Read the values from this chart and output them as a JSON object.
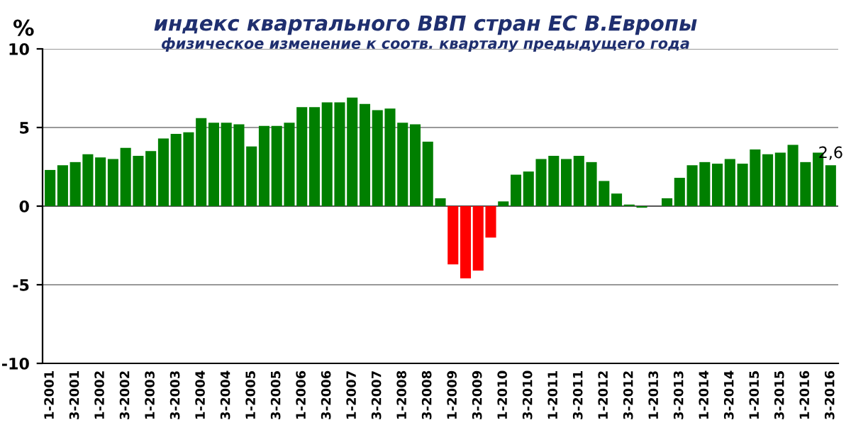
{
  "chart_data": {
    "type": "bar",
    "title": "индекс квартального ВВП стран ЕС В.Европы",
    "subtitle": "физическое изменение к соотв. кварталу предыдущего года",
    "ylabel": "%",
    "categories": [
      "1-2001",
      null,
      "3-2001",
      null,
      "1-2002",
      null,
      "3-2002",
      null,
      "1-2003",
      null,
      "3-2003",
      null,
      "1-2004",
      null,
      "3-2004",
      null,
      "1-2005",
      null,
      "3-2005",
      null,
      "1-2006",
      null,
      "3-2006",
      null,
      "1-2007",
      null,
      "3-2007",
      null,
      "1-2008",
      null,
      "3-2008",
      null,
      "1-2009",
      null,
      "3-2009",
      null,
      "1-2010",
      null,
      "3-2010",
      null,
      "1-2011",
      null,
      "3-2011",
      null,
      "1-2012",
      null,
      "3-2012",
      null,
      "1-2013",
      null,
      "3-2013",
      null,
      "1-2014",
      null,
      "3-2014",
      null,
      "1-2015",
      null,
      "3-2015",
      null,
      "1-2016",
      null,
      "3-2016"
    ],
    "values": [
      2.3,
      2.6,
      2.8,
      3.3,
      3.1,
      3.0,
      3.7,
      3.2,
      3.5,
      4.3,
      4.6,
      4.7,
      5.6,
      5.3,
      5.3,
      5.2,
      3.8,
      5.1,
      5.1,
      5.3,
      6.3,
      6.3,
      6.6,
      6.6,
      6.9,
      6.5,
      6.1,
      6.2,
      5.3,
      5.2,
      4.1,
      0.5,
      -3.7,
      -4.6,
      -4.1,
      -2.0,
      0.3,
      2.0,
      2.2,
      3.0,
      3.2,
      3.0,
      3.2,
      2.8,
      1.6,
      0.8,
      0.1,
      -0.1,
      0,
      0.5,
      1.8,
      2.6,
      2.8,
      2.7,
      3.0,
      2.7,
      3.6,
      3.3,
      3.4,
      3.9,
      2.8,
      3.4,
      2.6
    ],
    "colors": [
      "#007f00",
      "#007f00",
      "#007f00",
      "#007f00",
      "#007f00",
      "#007f00",
      "#007f00",
      "#007f00",
      "#007f00",
      "#007f00",
      "#007f00",
      "#007f00",
      "#007f00",
      "#007f00",
      "#007f00",
      "#007f00",
      "#007f00",
      "#007f00",
      "#007f00",
      "#007f00",
      "#007f00",
      "#007f00",
      "#007f00",
      "#007f00",
      "#007f00",
      "#007f00",
      "#007f00",
      "#007f00",
      "#007f00",
      "#007f00",
      "#007f00",
      "#007f00",
      "#ff0000",
      "#ff0000",
      "#ff0000",
      "#ff0000",
      "#007f00",
      "#007f00",
      "#007f00",
      "#007f00",
      "#007f00",
      "#007f00",
      "#007f00",
      "#007f00",
      "#007f00",
      "#007f00",
      "#007f00",
      "#007f00",
      "#007f00",
      "#007f00",
      "#007f00",
      "#007f00",
      "#007f00",
      "#007f00",
      "#007f00",
      "#007f00",
      "#007f00",
      "#007f00",
      "#007f00",
      "#007f00",
      "#007f00",
      "#007f00",
      "#007f00"
    ],
    "value_labels": [
      null,
      null,
      null,
      null,
      null,
      null,
      null,
      null,
      null,
      null,
      null,
      null,
      null,
      null,
      null,
      null,
      null,
      null,
      null,
      null,
      null,
      null,
      null,
      null,
      null,
      null,
      null,
      null,
      null,
      null,
      null,
      null,
      null,
      null,
      null,
      null,
      null,
      null,
      null,
      null,
      null,
      null,
      null,
      null,
      null,
      null,
      null,
      null,
      null,
      null,
      null,
      null,
      null,
      null,
      null,
      null,
      null,
      null,
      null,
      null,
      null,
      null,
      "2,6"
    ],
    "ylim": [
      -10,
      10
    ],
    "yticks": [
      -10,
      -5,
      0,
      5,
      10
    ],
    "grid": "y",
    "legend": false
  }
}
